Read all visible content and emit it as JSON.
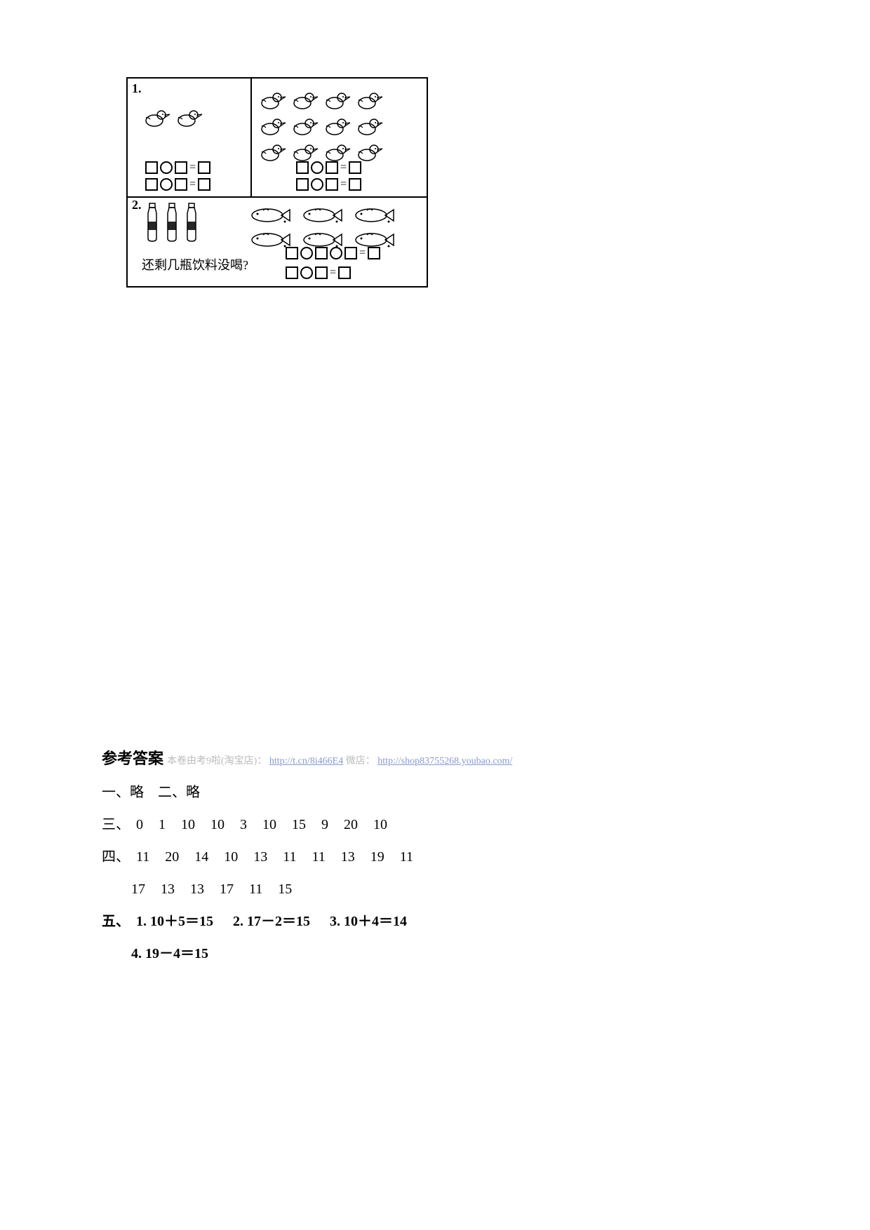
{
  "problems": {
    "p1_label": "1.",
    "p2_label": "2.",
    "q2_text": "还剩几瓶饮料没喝?",
    "eq_sign": "=",
    "ducks_left_count": 2,
    "ducks_right_rows": [
      4,
      4,
      4
    ],
    "bottles_count": 3,
    "fish_rows": [
      3,
      3
    ]
  },
  "answers": {
    "title": "参考答案",
    "watermark_text": "本卷由考9啦(淘宝店)：",
    "watermark_link1": "http://t.cn/8i466E4",
    "watermark_mid": "  微店：",
    "watermark_link2": "http://shop83755268.youbao.com/",
    "line1": "一、略　二、略",
    "line2_label": "三、",
    "line2_nums": [
      "0",
      "1",
      "10",
      "10",
      "3",
      "10",
      "15",
      "9",
      "20",
      "10"
    ],
    "line3_label": "四、",
    "line3_nums": [
      "11",
      "20",
      "14",
      "10",
      "13",
      "11",
      "11",
      "13",
      "19",
      "11"
    ],
    "line3b_nums": [
      "17",
      "13",
      "13",
      "17",
      "11",
      "15"
    ],
    "line4_label": "五、",
    "line4_items": [
      "1. 10＋5＝15",
      "2. 17－2＝15",
      "3. 10＋4＝14"
    ],
    "line5": "4. 19－4＝15"
  },
  "colors": {
    "text": "#000000",
    "bg": "#ffffff",
    "light": "#bbbbbb",
    "link": "#8899cc"
  }
}
